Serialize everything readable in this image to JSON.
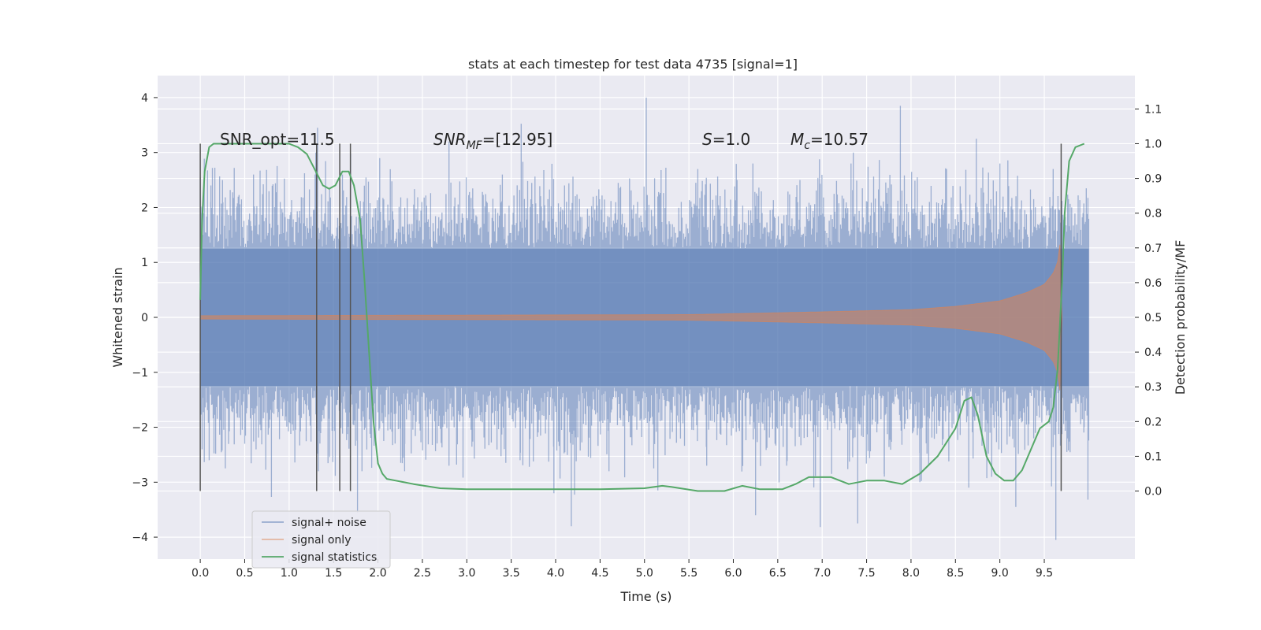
{
  "chart_data": {
    "type": "line",
    "title": "stats at each timestep for test data 4735 [signal=1]",
    "xlabel": "Time (s)",
    "ylabel": "Whitened strain",
    "y2label": "Detection probability/MF",
    "xlim": [
      -0.48,
      10.52
    ],
    "ylim": [
      -4.4,
      4.4
    ],
    "y2lim": [
      -0.196,
      1.196
    ],
    "x_ticks": [
      0.0,
      0.5,
      1.0,
      1.5,
      2.0,
      2.5,
      3.0,
      3.5,
      4.0,
      4.5,
      5.0,
      5.5,
      6.0,
      6.5,
      7.0,
      7.5,
      8.0,
      8.5,
      9.0,
      9.5
    ],
    "x_tick_labels": [
      "0.0",
      "0.5",
      "1.0",
      "1.5",
      "2.0",
      "2.5",
      "3.0",
      "3.5",
      "4.0",
      "4.5",
      "5.0",
      "5.5",
      "6.0",
      "6.5",
      "7.0",
      "7.5",
      "8.0",
      "8.5",
      "9.0",
      "9.5"
    ],
    "y_ticks": [
      4,
      3,
      2,
      1,
      0,
      -1,
      -2,
      -3,
      -4
    ],
    "y_tick_labels": [
      "4",
      "3",
      "2",
      "1",
      "0",
      "−1",
      "−2",
      "−3",
      "−4"
    ],
    "y2_ticks": [
      1.1,
      1.0,
      0.9,
      0.8,
      0.7,
      0.6,
      0.5,
      0.4,
      0.3,
      0.2,
      0.1,
      0.0
    ],
    "y2_tick_labels": [
      "1.1",
      "1.0",
      "0.9",
      "0.8",
      "0.7",
      "0.6",
      "0.5",
      "0.4",
      "0.3",
      "0.2",
      "0.1",
      "0.0"
    ],
    "grid": true,
    "legend_position": "lower-left",
    "annotations": {
      "snr_opt": "SNR_opt=11.5",
      "snr_mf_base": "SNR",
      "snr_mf_sub": "MF",
      "snr_mf_value": "=[12.95]",
      "s_symbol": "S",
      "s_value": "=1.0",
      "mc_base": "M",
      "mc_sub": "c",
      "mc_value": "=10.57"
    },
    "vertical_markers_x": [
      0.0,
      1.31,
      1.57,
      1.69,
      9.69
    ],
    "series": [
      {
        "name": "signal+ noise",
        "color": "#4c72b0",
        "x_range": [
          0.0,
          10.0
        ],
        "typical_envelope": [
          -1.25,
          1.25
        ],
        "peaks": [
          {
            "x": 0.02,
            "y": 1.8
          },
          {
            "x": 0.12,
            "y": 2.4
          },
          {
            "x": 0.25,
            "y": 2.5
          },
          {
            "x": 0.6,
            "y": 2.6
          },
          {
            "x": 0.9,
            "y": 2.1
          },
          {
            "x": 1.32,
            "y": 3.45
          },
          {
            "x": 1.3,
            "y": 3.0
          },
          {
            "x": 1.6,
            "y": 2.6
          },
          {
            "x": 2.02,
            "y": 2.9
          },
          {
            "x": 2.8,
            "y": 3.2
          },
          {
            "x": 3.4,
            "y": 2.6
          },
          {
            "x": 4.1,
            "y": 2.4
          },
          {
            "x": 5.02,
            "y": 4.0
          },
          {
            "x": 5.6,
            "y": 2.7
          },
          {
            "x": 6.22,
            "y": 2.8
          },
          {
            "x": 6.75,
            "y": 2.5
          },
          {
            "x": 7.35,
            "y": 3.0
          },
          {
            "x": 7.88,
            "y": 3.85
          },
          {
            "x": 8.4,
            "y": 2.7
          },
          {
            "x": 9.0,
            "y": 2.8
          },
          {
            "x": 9.6,
            "y": 2.7
          }
        ],
        "troughs": [
          {
            "x": 0.02,
            "y": -2.4
          },
          {
            "x": 0.1,
            "y": -2.6
          },
          {
            "x": 0.5,
            "y": -2.3
          },
          {
            "x": 1.33,
            "y": -2.8
          },
          {
            "x": 1.77,
            "y": -3.55
          },
          {
            "x": 1.82,
            "y": -2.8
          },
          {
            "x": 2.3,
            "y": -2.8
          },
          {
            "x": 2.8,
            "y": -2.7
          },
          {
            "x": 3.6,
            "y": -2.6
          },
          {
            "x": 3.98,
            "y": -3.2
          },
          {
            "x": 4.6,
            "y": -2.8
          },
          {
            "x": 5.15,
            "y": -3.15
          },
          {
            "x": 5.7,
            "y": -2.7
          },
          {
            "x": 6.25,
            "y": -3.6
          },
          {
            "x": 6.6,
            "y": -2.7
          },
          {
            "x": 7.4,
            "y": -3.75
          },
          {
            "x": 7.7,
            "y": -2.9
          },
          {
            "x": 8.1,
            "y": -3.0
          },
          {
            "x": 8.65,
            "y": -3.1
          },
          {
            "x": 9.18,
            "y": -3.45
          },
          {
            "x": 9.63,
            "y": -4.05
          },
          {
            "x": 9.95,
            "y": -2.0
          }
        ]
      },
      {
        "name": "signal only",
        "color": "#dd8452",
        "envelope": [
          {
            "x": 0.0,
            "a": 0.03
          },
          {
            "x": 5.5,
            "a": 0.05
          },
          {
            "x": 7.0,
            "a": 0.1
          },
          {
            "x": 8.0,
            "a": 0.14
          },
          {
            "x": 8.5,
            "a": 0.2
          },
          {
            "x": 9.0,
            "a": 0.3
          },
          {
            "x": 9.3,
            "a": 0.45
          },
          {
            "x": 9.5,
            "a": 0.6
          },
          {
            "x": 9.6,
            "a": 0.8
          },
          {
            "x": 9.65,
            "a": 1.0
          },
          {
            "x": 9.69,
            "a": 1.5
          },
          {
            "x": 9.7,
            "a": 0.0
          }
        ]
      },
      {
        "name": "signal statistics",
        "color": "#55a868",
        "axis": "right",
        "x": [
          0.0,
          0.02,
          0.05,
          0.1,
          0.15,
          0.25,
          0.4,
          0.6,
          0.8,
          1.0,
          1.1,
          1.2,
          1.3,
          1.38,
          1.45,
          1.52,
          1.6,
          1.67,
          1.73,
          1.8,
          1.85,
          1.9,
          1.95,
          2.0,
          2.05,
          2.1,
          2.2,
          2.4,
          2.7,
          3.0,
          3.5,
          4.0,
          4.5,
          5.0,
          5.2,
          5.3,
          5.6,
          5.9,
          6.1,
          6.3,
          6.55,
          6.7,
          6.85,
          7.1,
          7.3,
          7.5,
          7.7,
          7.9,
          8.1,
          8.3,
          8.5,
          8.6,
          8.68,
          8.75,
          8.85,
          8.95,
          9.05,
          9.15,
          9.25,
          9.35,
          9.45,
          9.55,
          9.6,
          9.65,
          9.7,
          9.73,
          9.78,
          9.85,
          9.95
        ],
        "values": [
          0.55,
          0.78,
          0.92,
          0.99,
          1.0,
          1.0,
          1.0,
          1.0,
          1.0,
          1.0,
          0.99,
          0.97,
          0.92,
          0.88,
          0.87,
          0.88,
          0.92,
          0.92,
          0.88,
          0.78,
          0.6,
          0.4,
          0.2,
          0.08,
          0.05,
          0.035,
          0.03,
          0.02,
          0.008,
          0.005,
          0.005,
          0.005,
          0.005,
          0.008,
          0.015,
          0.012,
          0.0,
          0.0,
          0.015,
          0.005,
          0.005,
          0.02,
          0.04,
          0.04,
          0.02,
          0.03,
          0.03,
          0.02,
          0.05,
          0.1,
          0.18,
          0.26,
          0.27,
          0.22,
          0.1,
          0.05,
          0.03,
          0.03,
          0.06,
          0.12,
          0.18,
          0.2,
          0.24,
          0.35,
          0.6,
          0.8,
          0.95,
          0.99,
          1.0
        ]
      }
    ]
  }
}
